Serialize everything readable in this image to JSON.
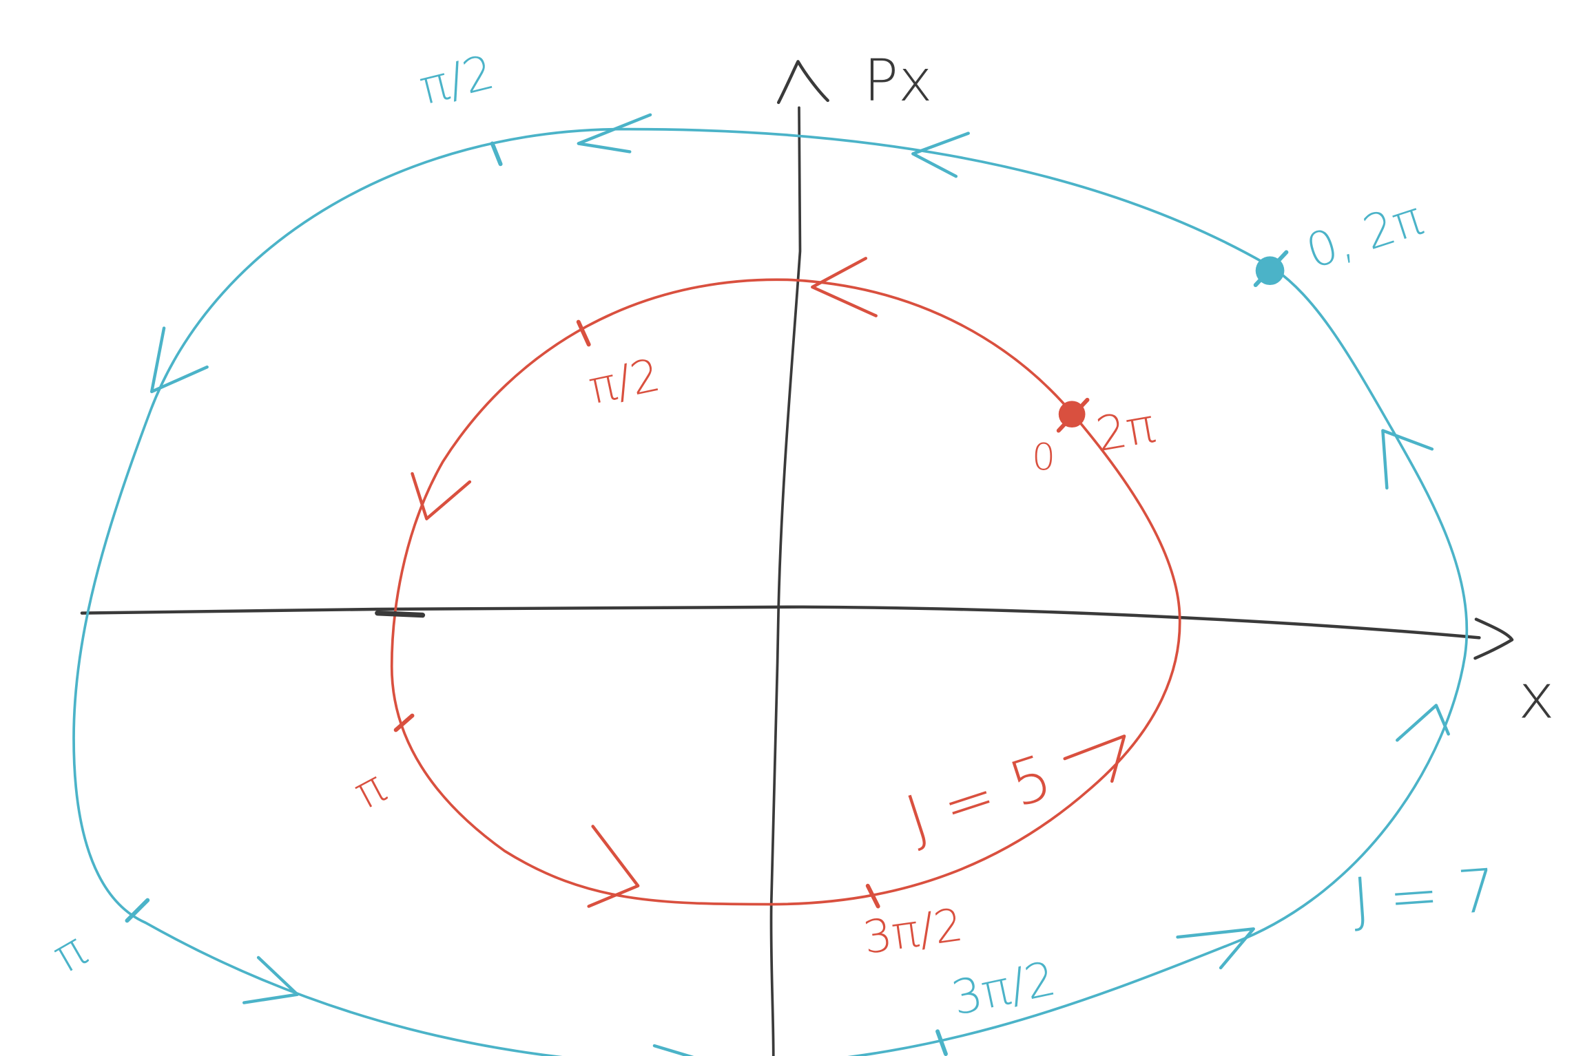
{
  "axes": {
    "horizontal_label": "x",
    "vertical_label": "Px",
    "color": "#3a3a3a"
  },
  "orbits": [
    {
      "id": "inner",
      "action_label": "J = 5",
      "color": "#d9503f",
      "phase_labels": {
        "start_zero": "0",
        "start_two_pi": "2π",
        "quarter": "π/2",
        "half": "π",
        "three_quarter": "3π/2"
      }
    },
    {
      "id": "outer",
      "action_label": "J = 7",
      "color": "#4bb3c8",
      "phase_labels": {
        "start": "0, 2π",
        "quarter": "π/2",
        "half": "π",
        "three_quarter": "3π/2"
      }
    }
  ]
}
